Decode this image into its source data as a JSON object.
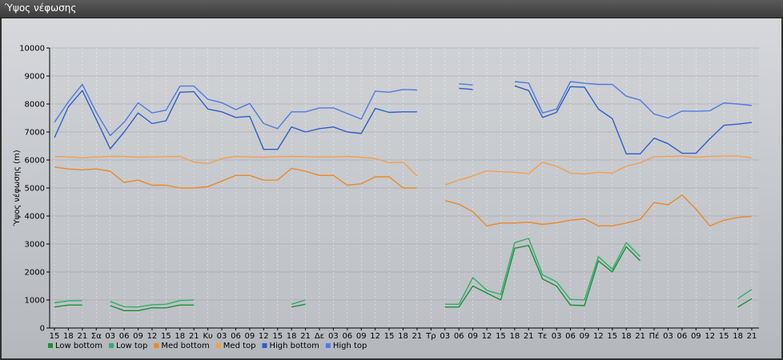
{
  "window": {
    "title": "Ύψος νέφωσης"
  },
  "chart_data": {
    "type": "line",
    "ylabel": "Ύψος νέφωσης (m)",
    "ylim": [
      0,
      10000
    ],
    "yticks": [
      0,
      1000,
      2000,
      3000,
      4000,
      5000,
      6000,
      7000,
      8000,
      9000,
      10000
    ],
    "grid": true,
    "legend_placement": "bottom-left",
    "x": [
      "15",
      "18",
      "21",
      "Σα",
      "03",
      "06",
      "09",
      "12",
      "15",
      "18",
      "21",
      "Κυ",
      "03",
      "06",
      "09",
      "12",
      "15",
      "18",
      "21",
      "Δε",
      "03",
      "06",
      "09",
      "12",
      "15",
      "18",
      "21",
      "Τρ",
      "03",
      "06",
      "09",
      "12",
      "15",
      "18",
      "21",
      "Τε",
      "03",
      "06",
      "09",
      "12",
      "15",
      "18",
      "21",
      "Πέ",
      "03",
      "06",
      "09",
      "12",
      "15",
      "18",
      "21"
    ],
    "series": [
      {
        "name": "Low bottom",
        "color": "#1a8f3c",
        "values": [
          750,
          820,
          820,
          null,
          800,
          620,
          620,
          720,
          720,
          820,
          820,
          null,
          null,
          null,
          null,
          null,
          null,
          750,
          850,
          null,
          null,
          null,
          null,
          null,
          null,
          null,
          null,
          null,
          750,
          750,
          1500,
          1250,
          1000,
          2850,
          2950,
          1750,
          1500,
          820,
          800,
          2400,
          2000,
          2900,
          2400,
          null,
          null,
          null,
          null,
          null,
          null,
          750,
          1050
        ]
      },
      {
        "name": "Low top",
        "color": "#2fae6a",
        "values": [
          900,
          970,
          980,
          null,
          950,
          760,
          750,
          830,
          850,
          980,
          1000,
          null,
          null,
          null,
          null,
          null,
          null,
          850,
          1000,
          null,
          null,
          null,
          null,
          null,
          null,
          null,
          null,
          null,
          850,
          850,
          1800,
          1350,
          1200,
          3050,
          3200,
          1900,
          1650,
          1020,
          1000,
          2550,
          2100,
          3050,
          2550,
          null,
          null,
          null,
          null,
          null,
          null,
          1050,
          1380
        ]
      },
      {
        "name": "Med bottom",
        "color": "#e8892b",
        "values": [
          5750,
          5680,
          5650,
          5680,
          5600,
          5200,
          5280,
          5100,
          5100,
          5000,
          5000,
          5050,
          5250,
          5450,
          5450,
          5280,
          5280,
          5700,
          5600,
          5450,
          5450,
          5100,
          5150,
          5400,
          5400,
          5000,
          5000,
          null,
          4550,
          4420,
          4150,
          3650,
          3750,
          3750,
          3780,
          3700,
          3760,
          3850,
          3900,
          3650,
          3650,
          3750,
          3880,
          4480,
          4400,
          4750,
          4250,
          3650,
          3850,
          3950,
          3990
        ]
      },
      {
        "name": "Med top",
        "color": "#f0a050",
        "values": [
          6130,
          6110,
          6080,
          6110,
          6130,
          6130,
          6100,
          6110,
          6120,
          6130,
          5930,
          5870,
          6050,
          6130,
          6110,
          6100,
          6120,
          6130,
          6120,
          6110,
          6110,
          6130,
          6100,
          6060,
          5900,
          5920,
          5430,
          null,
          5110,
          5280,
          5430,
          5610,
          5580,
          5560,
          5510,
          5920,
          5780,
          5530,
          5500,
          5560,
          5530,
          5780,
          5900,
          6120,
          6130,
          6140,
          6100,
          6130,
          6140,
          6140,
          6080
        ]
      },
      {
        "name": "High bottom",
        "color": "#2e5fc9",
        "values": [
          6800,
          7900,
          8480,
          7450,
          6400,
          7000,
          7680,
          7300,
          7400,
          8420,
          8440,
          7820,
          7720,
          7520,
          7560,
          6380,
          6380,
          7180,
          7000,
          7120,
          7180,
          7000,
          6950,
          7840,
          7700,
          7720,
          7720,
          null,
          null,
          8560,
          8520,
          null,
          null,
          8650,
          8480,
          7520,
          7700,
          8620,
          8600,
          7820,
          7480,
          6220,
          6220,
          6780,
          6580,
          6240,
          6240,
          6760,
          7240,
          7280,
          7340
        ]
      },
      {
        "name": "High top",
        "color": "#4f7ae0",
        "values": [
          7350,
          8080,
          8700,
          7700,
          6870,
          7350,
          8040,
          7680,
          7780,
          8640,
          8640,
          8170,
          8050,
          7800,
          8020,
          7300,
          7120,
          7720,
          7720,
          7860,
          7860,
          7660,
          7460,
          8460,
          8420,
          8520,
          8500,
          null,
          null,
          8720,
          8680,
          null,
          null,
          8800,
          8750,
          7680,
          7820,
          8800,
          8740,
          8700,
          8700,
          8280,
          8140,
          7640,
          7500,
          7750,
          7740,
          7760,
          8040,
          8000,
          7950
        ]
      }
    ]
  }
}
